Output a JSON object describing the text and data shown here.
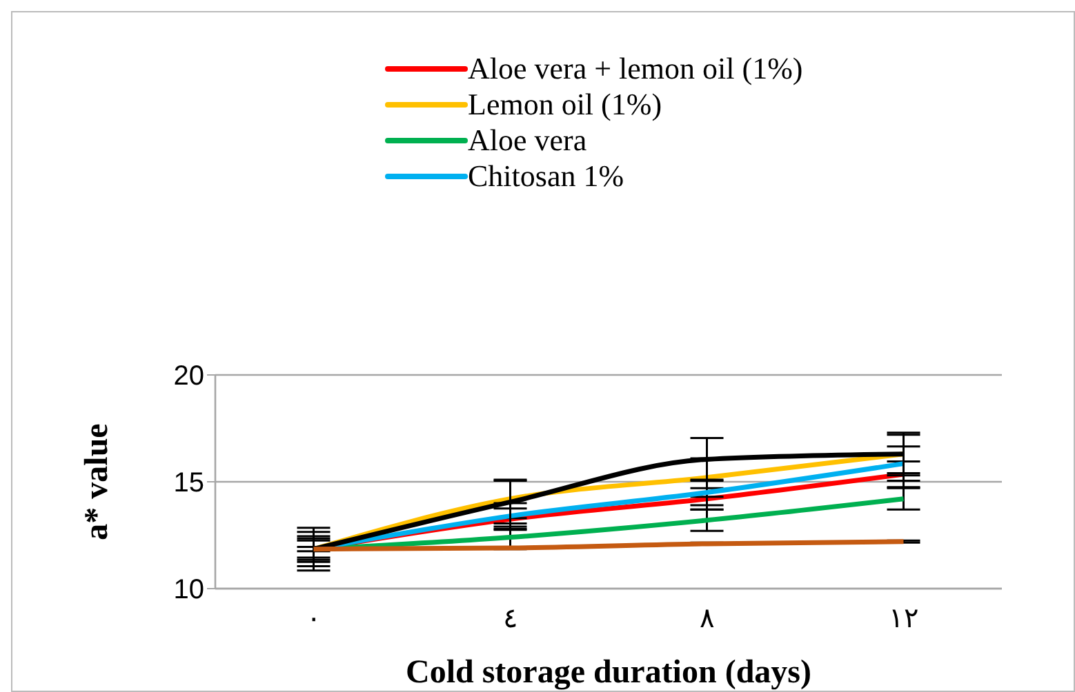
{
  "chart_data": {
    "type": "line",
    "xlabel": "Cold storage duration (days)",
    "ylabel": "a* value",
    "categories": [
      "٠",
      "٤",
      "٨",
      "١٢"
    ],
    "ylim": [
      10,
      20
    ],
    "yticks": [
      10,
      15,
      20
    ],
    "grid": "y",
    "legend": "top",
    "marker": "none",
    "series": [
      {
        "name": "Aloe vera + lemon oil (1%)",
        "color": "#ff0000",
        "values": [
          11.85,
          13.25,
          14.2,
          15.35
        ],
        "errors": [
          0.5,
          0.5,
          0.5,
          0.6
        ]
      },
      {
        "name": "Lemon oil (1%)",
        "color": "#ffc000",
        "values": [
          11.85,
          14.2,
          15.2,
          16.3
        ],
        "errors": [
          0.8,
          0.9,
          0.9,
          0.9
        ]
      },
      {
        "name": "Aloe vera",
        "color": "#00b050",
        "values": [
          11.85,
          12.4,
          13.2,
          14.2
        ],
        "errors": [
          0.4,
          0.5,
          0.5,
          0.5
        ]
      },
      {
        "name": "Chitosan 1%",
        "color": "#00b0f0",
        "values": [
          11.85,
          13.4,
          14.5,
          15.85
        ],
        "errors": [
          0.6,
          0.6,
          0.6,
          0.8
        ]
      },
      {
        "color": "#000000",
        "values": [
          11.85,
          14.05,
          16.05,
          16.3
        ],
        "errors": [
          1,
          1,
          1,
          1
        ]
      },
      {
        "color": "#c55a11",
        "values": [
          11.85,
          11.9,
          12.1,
          12.2
        ],
        "errors": [
          0.1,
          0.05,
          0.05,
          0.05
        ]
      }
    ]
  }
}
